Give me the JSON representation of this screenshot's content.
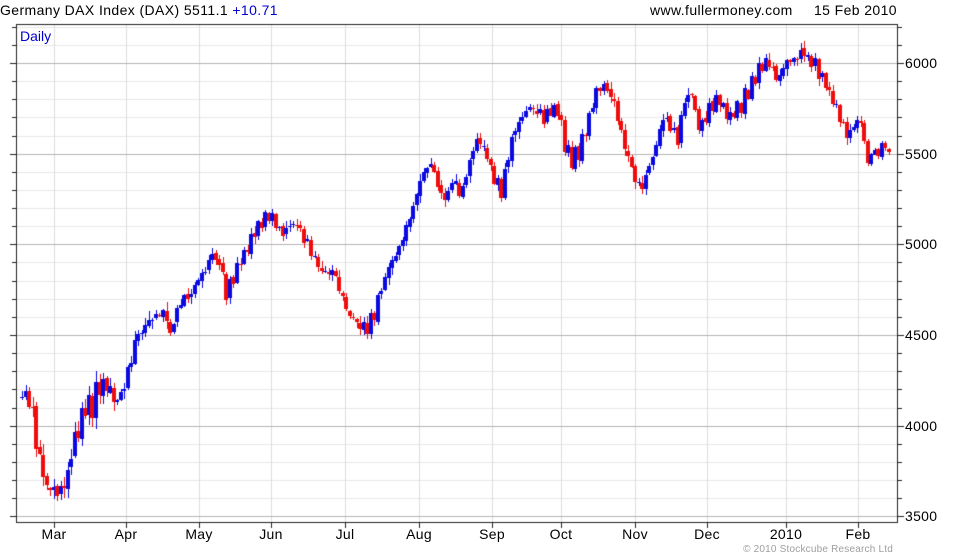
{
  "header": {
    "title_main": "Germany DAX Index (DAX) 5511.1 ",
    "title_change": "+10.71",
    "site": "www.fullermoney.com",
    "date": "15 Feb 2010"
  },
  "footer": {
    "copyright": "© 2010 Stockcube Research Ltd"
  },
  "chart_data": {
    "type": "candlestick",
    "title": "Germany DAX Index (DAX)",
    "frequency": "Daily",
    "last_price": 5511.1,
    "change": 10.71,
    "days": 247,
    "y_axis": {
      "min": 3469,
      "max": 6215,
      "tick_labels": [
        6000,
        5500,
        5000,
        4500,
        4000,
        3500
      ],
      "minor_step": 100,
      "major_step": 500
    },
    "x_axis": {
      "ticks": [
        {
          "label": "Mar",
          "day": 9.1
        },
        {
          "label": "Apr",
          "day": 29.5
        },
        {
          "label": "May",
          "day": 50.2
        },
        {
          "label": "Jun",
          "day": 70.6
        },
        {
          "label": "Jul",
          "day": 91.6
        },
        {
          "label": "Aug",
          "day": 112.6
        },
        {
          "label": "Sep",
          "day": 133.4
        },
        {
          "label": "Oct",
          "day": 152.9
        },
        {
          "label": "Nov",
          "day": 173.9
        },
        {
          "label": "Dec",
          "day": 194.4
        },
        {
          "label": "2010",
          "day": 216.8
        },
        {
          "label": "Feb",
          "day": 237.2
        }
      ]
    },
    "colors": {
      "up": "#0a0ae0",
      "down": "#ee0d0d",
      "grid_minor": "#e8e8e8",
      "grid_major": "#b4b4b4",
      "grid_vertical": "#dcdcdc",
      "border": "#222222"
    },
    "trend": [
      [
        0,
        4170
      ],
      [
        2,
        4150
      ],
      [
        3,
        4050
      ],
      [
        5,
        3800
      ],
      [
        7,
        3660
      ],
      [
        9,
        3630
      ],
      [
        11,
        3640
      ],
      [
        13,
        3720
      ],
      [
        14,
        3850
      ],
      [
        16,
        4000
      ],
      [
        18,
        4090
      ],
      [
        20,
        4120
      ],
      [
        22,
        4200
      ],
      [
        24,
        4230
      ],
      [
        26,
        4140
      ],
      [
        28,
        4160
      ],
      [
        30,
        4300
      ],
      [
        32,
        4450
      ],
      [
        34,
        4530
      ],
      [
        36,
        4590
      ],
      [
        38,
        4600
      ],
      [
        40,
        4640
      ],
      [
        42,
        4500
      ],
      [
        44,
        4650
      ],
      [
        46,
        4700
      ],
      [
        48,
        4720
      ],
      [
        50,
        4800
      ],
      [
        52,
        4870
      ],
      [
        54,
        4940
      ],
      [
        56,
        4900
      ],
      [
        58,
        4730
      ],
      [
        60,
        4820
      ],
      [
        62,
        4900
      ],
      [
        64,
        4990
      ],
      [
        66,
        5060
      ],
      [
        68,
        5120
      ],
      [
        70,
        5160
      ],
      [
        72,
        5120
      ],
      [
        74,
        5060
      ],
      [
        76,
        5100
      ],
      [
        78,
        5120
      ],
      [
        80,
        5040
      ],
      [
        82,
        4950
      ],
      [
        84,
        4880
      ],
      [
        86,
        4840
      ],
      [
        88,
        4870
      ],
      [
        90,
        4770
      ],
      [
        92,
        4650
      ],
      [
        94,
        4580
      ],
      [
        96,
        4550
      ],
      [
        98,
        4540
      ],
      [
        100,
        4620
      ],
      [
        102,
        4760
      ],
      [
        104,
        4870
      ],
      [
        106,
        4950
      ],
      [
        108,
        5040
      ],
      [
        110,
        5140
      ],
      [
        112,
        5280
      ],
      [
        114,
        5400
      ],
      [
        116,
        5440
      ],
      [
        118,
        5330
      ],
      [
        120,
        5250
      ],
      [
        122,
        5350
      ],
      [
        124,
        5280
      ],
      [
        126,
        5380
      ],
      [
        128,
        5530
      ],
      [
        130,
        5560
      ],
      [
        132,
        5480
      ],
      [
        134,
        5350
      ],
      [
        136,
        5300
      ],
      [
        138,
        5480
      ],
      [
        140,
        5640
      ],
      [
        142,
        5700
      ],
      [
        144,
        5760
      ],
      [
        146,
        5740
      ],
      [
        148,
        5690
      ],
      [
        150,
        5730
      ],
      [
        152,
        5740
      ],
      [
        154,
        5550
      ],
      [
        156,
        5460
      ],
      [
        158,
        5520
      ],
      [
        160,
        5630
      ],
      [
        162,
        5780
      ],
      [
        164,
        5870
      ],
      [
        166,
        5860
      ],
      [
        168,
        5770
      ],
      [
        170,
        5620
      ],
      [
        172,
        5470
      ],
      [
        174,
        5360
      ],
      [
        176,
        5320
      ],
      [
        178,
        5430
      ],
      [
        180,
        5550
      ],
      [
        182,
        5690
      ],
      [
        184,
        5660
      ],
      [
        186,
        5570
      ],
      [
        188,
        5790
      ],
      [
        190,
        5820
      ],
      [
        192,
        5630
      ],
      [
        194,
        5700
      ],
      [
        196,
        5780
      ],
      [
        198,
        5800
      ],
      [
        200,
        5700
      ],
      [
        202,
        5730
      ],
      [
        204,
        5770
      ],
      [
        206,
        5850
      ],
      [
        208,
        5930
      ],
      [
        210,
        5990
      ],
      [
        212,
        6000
      ],
      [
        214,
        5910
      ],
      [
        216,
        5980
      ],
      [
        218,
        6010
      ],
      [
        220,
        6030
      ],
      [
        222,
        6050
      ],
      [
        224,
        6010
      ],
      [
        226,
        5960
      ],
      [
        228,
        5890
      ],
      [
        230,
        5790
      ],
      [
        232,
        5690
      ],
      [
        234,
        5590
      ],
      [
        236,
        5660
      ],
      [
        238,
        5680
      ],
      [
        239,
        5560
      ],
      [
        240,
        5450
      ],
      [
        241,
        5490
      ],
      [
        242,
        5520
      ],
      [
        243,
        5490
      ],
      [
        244,
        5550
      ],
      [
        245,
        5530
      ],
      [
        246,
        5511
      ]
    ],
    "noise": {
      "seed": 3,
      "close_amp": 21,
      "revert": 0.66,
      "zigzag": 15,
      "gap_amp": 11,
      "wick_amp": 40,
      "taper_days": 8,
      "taper_factor": 0.45,
      "vol_profile": [
        [
          0,
          1.6
        ],
        [
          22,
          1.25
        ],
        [
          45,
          1.0
        ]
      ]
    }
  }
}
